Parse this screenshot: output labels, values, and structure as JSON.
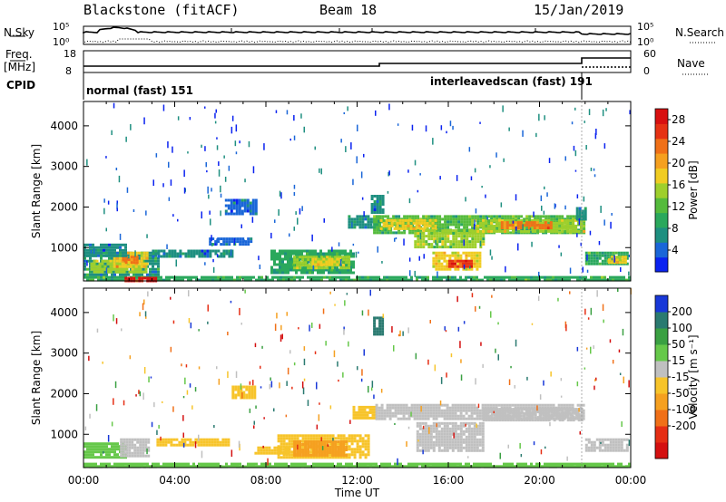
{
  "header": {
    "station": "Blackstone (fitACF)",
    "beam": "Beam 18",
    "date": "15/Jan/2019"
  },
  "side_labels": {
    "n_sky": "N.Sky",
    "freq": "Freq.",
    "mhz": "[MHz]",
    "cpid": "CPID",
    "n_search": "N.Search",
    "nave": "Nave"
  },
  "top_panels": {
    "noise": {
      "left_ticks": [
        "10^5",
        "10^0"
      ],
      "right_ticks": [
        "10^5",
        "10^0"
      ]
    },
    "freq": {
      "left_ticks": [
        "18",
        "8"
      ],
      "right_ticks": [
        "60",
        "0"
      ]
    },
    "cpid": {
      "segments": [
        {
          "label": "normal (fast) 151",
          "start": 0.0,
          "end": 21.9
        },
        {
          "label": "interleavedscan (fast) 191",
          "start": 21.9,
          "end": 24.0
        }
      ]
    }
  },
  "chart_data": [
    {
      "type": "heatmap",
      "name": "power",
      "ylabel": "Slant Range [km]",
      "xlim": [
        0,
        24
      ],
      "ylim": [
        180,
        4600
      ],
      "yticks": [
        1000,
        2000,
        3000,
        4000
      ],
      "colorbar": {
        "label": "Power [dB]",
        "range": [
          0,
          30
        ],
        "ticks": [
          "28",
          "24",
          "20",
          "16",
          "12",
          "8",
          "4"
        ],
        "colors": [
          "#0a22f0",
          "#1a66d8",
          "#1e8f80",
          "#2aa85c",
          "#55bb3c",
          "#9ecf2c",
          "#f0cc22",
          "#f5a020",
          "#f07018",
          "#e63214",
          "#d81010"
        ]
      },
      "echo_regions": [
        {
          "t0": 0.0,
          "t1": 24.0,
          "r0": 200,
          "r1": 300,
          "power": 10
        },
        {
          "t0": 0.0,
          "t1": 3.3,
          "r0": 300,
          "r1": 900,
          "power": 8
        },
        {
          "t0": 0.3,
          "t1": 2.8,
          "r0": 400,
          "r1": 700,
          "power": 15
        },
        {
          "t0": 1.3,
          "t1": 2.8,
          "r0": 500,
          "r1": 900,
          "power": 18
        },
        {
          "t0": 1.7,
          "t1": 2.4,
          "r0": 600,
          "r1": 800,
          "power": 22
        },
        {
          "t0": 1.8,
          "t1": 3.2,
          "r0": 180,
          "r1": 280,
          "power": 28
        },
        {
          "t0": 0.0,
          "t1": 1.8,
          "r0": 800,
          "r1": 1100,
          "power": 6
        },
        {
          "t0": 3.0,
          "t1": 6.5,
          "r0": 750,
          "r1": 950,
          "power": 6
        },
        {
          "t0": 5.5,
          "t1": 7.3,
          "r0": 1050,
          "r1": 1250,
          "power": 5
        },
        {
          "t0": 6.2,
          "t1": 7.6,
          "r0": 1800,
          "r1": 2200,
          "power": 5
        },
        {
          "t0": 8.2,
          "t1": 11.8,
          "r0": 400,
          "r1": 950,
          "power": 9
        },
        {
          "t0": 9.2,
          "t1": 11.6,
          "r0": 500,
          "r1": 800,
          "power": 14
        },
        {
          "t0": 10.0,
          "t1": 11.2,
          "r0": 600,
          "r1": 750,
          "power": 18
        },
        {
          "t0": 11.6,
          "t1": 13.0,
          "r0": 1500,
          "r1": 1800,
          "power": 7
        },
        {
          "t0": 12.6,
          "t1": 13.1,
          "r0": 1850,
          "r1": 2300,
          "power": 6
        },
        {
          "t0": 12.7,
          "t1": 22.0,
          "r0": 1350,
          "r1": 1800,
          "power": 11
        },
        {
          "t0": 13.0,
          "t1": 15.5,
          "r0": 1450,
          "r1": 1700,
          "power": 17
        },
        {
          "t0": 14.5,
          "t1": 17.6,
          "r0": 1000,
          "r1": 1450,
          "power": 14
        },
        {
          "t0": 15.3,
          "t1": 17.4,
          "r0": 450,
          "r1": 900,
          "power": 18
        },
        {
          "t0": 16.0,
          "t1": 17.0,
          "r0": 500,
          "r1": 700,
          "power": 26
        },
        {
          "t0": 17.0,
          "t1": 21.9,
          "r0": 1400,
          "r1": 1700,
          "power": 16
        },
        {
          "t0": 18.3,
          "t1": 20.5,
          "r0": 1450,
          "r1": 1650,
          "power": 22
        },
        {
          "t0": 21.6,
          "t1": 22.0,
          "r0": 1700,
          "r1": 2000,
          "power": 6
        },
        {
          "t0": 22.0,
          "t1": 23.9,
          "r0": 600,
          "r1": 900,
          "power": 10
        },
        {
          "t0": 23.0,
          "t1": 23.8,
          "r0": 650,
          "r1": 800,
          "power": 18
        }
      ]
    },
    {
      "type": "heatmap",
      "name": "velocity",
      "ylabel": "Slant Range [km]",
      "xlabel": "Time UT",
      "xlim": [
        0,
        24
      ],
      "ylim": [
        180,
        4600
      ],
      "yticks": [
        1000,
        2000,
        3000,
        4000
      ],
      "x_tick_labels": [
        "00:00",
        "04:00",
        "08:00",
        "12:00",
        "16:00",
        "20:00",
        "00:00"
      ],
      "colorbar": {
        "label": "Velocity [m s⁻¹]",
        "ticks": [
          "200",
          "100",
          "50",
          "15",
          "-15",
          "-50",
          "-100",
          "-200"
        ],
        "colors": [
          "#1838d8",
          "#2a7a70",
          "#3aa042",
          "#66c84a",
          "#c0c0c0",
          "#f7c42a",
          "#f5a020",
          "#f07018",
          "#e52e14",
          "#d41010"
        ]
      },
      "echo_regions": [
        {
          "t0": 0.0,
          "t1": 24.0,
          "r0": 200,
          "r1": 300,
          "velocity": 30
        },
        {
          "t0": 0.0,
          "t1": 1.8,
          "r0": 400,
          "r1": 800,
          "velocity": 30
        },
        {
          "t0": 1.6,
          "t1": 2.9,
          "r0": 450,
          "r1": 900,
          "velocity": 0
        },
        {
          "t0": 3.2,
          "t1": 6.4,
          "r0": 750,
          "r1": 900,
          "velocity": -40
        },
        {
          "t0": 6.5,
          "t1": 7.5,
          "r0": 1900,
          "r1": 2200,
          "velocity": -20
        },
        {
          "t0": 7.5,
          "t1": 9.0,
          "r0": 500,
          "r1": 700,
          "velocity": -30
        },
        {
          "t0": 8.5,
          "t1": 12.5,
          "r0": 450,
          "r1": 1000,
          "velocity": -40
        },
        {
          "t0": 9.2,
          "t1": 11.5,
          "r0": 500,
          "r1": 850,
          "velocity": -60
        },
        {
          "t0": 11.8,
          "t1": 12.8,
          "r0": 1400,
          "r1": 1700,
          "velocity": -20
        },
        {
          "t0": 12.7,
          "t1": 13.1,
          "r0": 3450,
          "r1": 3900,
          "velocity": 150
        },
        {
          "t0": 12.8,
          "t1": 21.9,
          "r0": 1350,
          "r1": 1750,
          "velocity": 0
        },
        {
          "t0": 14.6,
          "t1": 17.5,
          "r0": 600,
          "r1": 1300,
          "velocity": 0
        },
        {
          "t0": 17.5,
          "t1": 21.9,
          "r0": 1350,
          "r1": 1650,
          "velocity": 0
        },
        {
          "t0": 22.0,
          "t1": 23.9,
          "r0": 600,
          "r1": 900,
          "velocity": 0
        },
        {
          "t0": 0.0,
          "t1": 24.0,
          "r0": 180,
          "r1": 240,
          "velocity": 40
        }
      ]
    }
  ]
}
